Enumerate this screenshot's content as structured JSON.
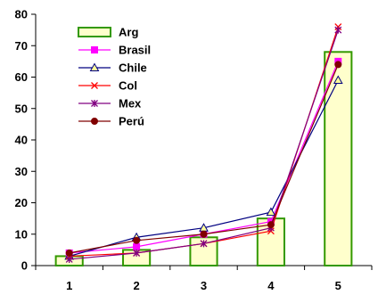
{
  "chart_data": {
    "type": "bar",
    "categories": [
      "1",
      "2",
      "3",
      "4",
      "5"
    ],
    "ylim": [
      0,
      80
    ],
    "yticks": [
      0,
      10,
      20,
      30,
      40,
      50,
      60,
      70,
      80
    ],
    "grid": false,
    "legend_position": "top-left",
    "bar_series": {
      "name": "Arg",
      "values": [
        3,
        5,
        9,
        15,
        68
      ],
      "fill": "#ffffcc",
      "stroke": "#339900"
    },
    "line_series": [
      {
        "name": "Brasil",
        "values": [
          4,
          6,
          10,
          14,
          65
        ],
        "color": "#ff00ff",
        "marker": "square"
      },
      {
        "name": "Chile",
        "values": [
          3,
          9,
          12,
          17,
          59
        ],
        "color": "#000080",
        "marker": "triangle"
      },
      {
        "name": "Col",
        "values": [
          3,
          4,
          7,
          11,
          76
        ],
        "color": "#ff0000",
        "marker": "x"
      },
      {
        "name": "Mex",
        "values": [
          2,
          4,
          7,
          12,
          75
        ],
        "color": "#800080",
        "marker": "star"
      },
      {
        "name": "Perú",
        "values": [
          4,
          8,
          10,
          13,
          64
        ],
        "color": "#800000",
        "marker": "circle"
      }
    ]
  }
}
